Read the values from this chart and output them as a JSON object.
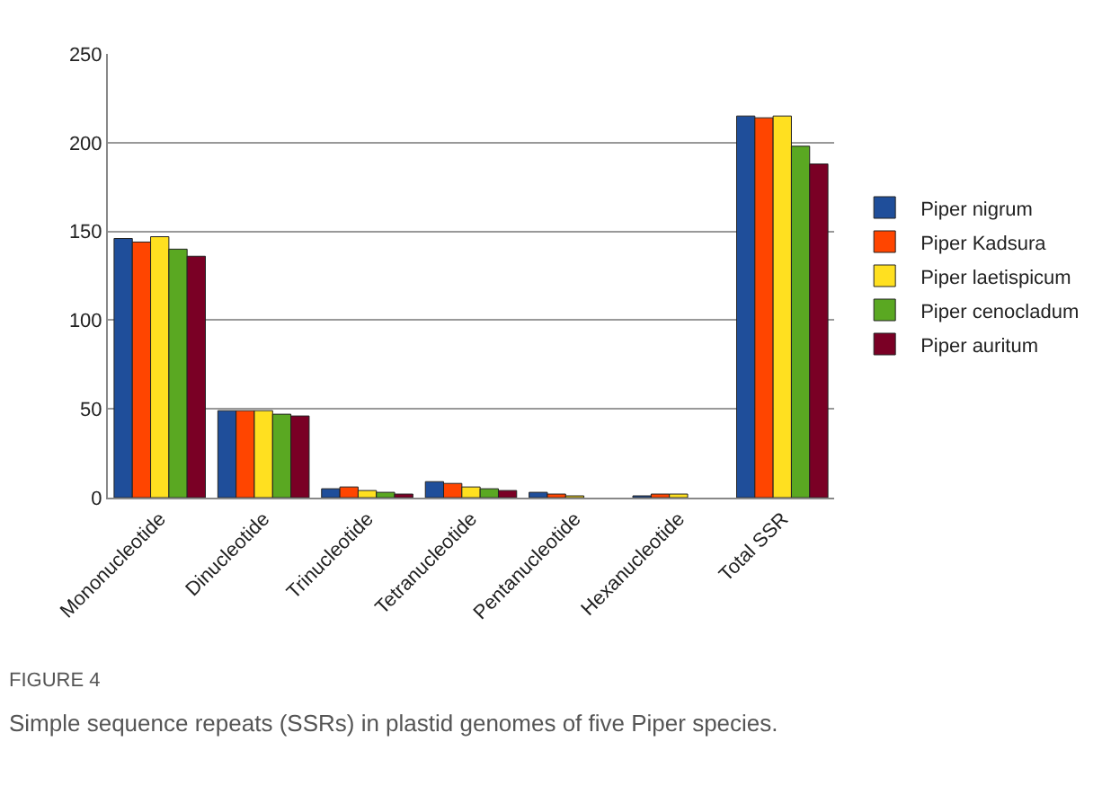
{
  "chart_data": {
    "type": "bar",
    "categories": [
      "Mononucleotide",
      "Dinucleotide",
      "Trinucleotide",
      "Tetranucleotide",
      "Pentanucleotide",
      "Hexanucleotide",
      "Total SSR"
    ],
    "series": [
      {
        "name": "Piper nigrum",
        "color": "#1f4e9a",
        "values": [
          146,
          49,
          5,
          9,
          3,
          1,
          215
        ]
      },
      {
        "name": "Piper Kadsura",
        "color": "#ff4500",
        "values": [
          144,
          49,
          6,
          8,
          2,
          2,
          214
        ]
      },
      {
        "name": "Piper laetispicum",
        "color": "#ffe020",
        "values": [
          147,
          49,
          4,
          6,
          1,
          2,
          215
        ]
      },
      {
        "name": "Piper cenocladum",
        "color": "#5aa822",
        "values": [
          140,
          47,
          3,
          5,
          null,
          null,
          198
        ]
      },
      {
        "name": "Piper auritum",
        "color": "#7a0025",
        "values": [
          136,
          46,
          2,
          4,
          null,
          null,
          188
        ]
      }
    ],
    "ylim": [
      0,
      250
    ],
    "yticks": [
      0,
      50,
      100,
      150,
      200,
      250
    ],
    "grid": "y",
    "legend": "right",
    "annotations": [
      "FIGURE 4",
      "Simple sequence repeats (SSRs) in plastid genomes of five Piper species."
    ]
  }
}
